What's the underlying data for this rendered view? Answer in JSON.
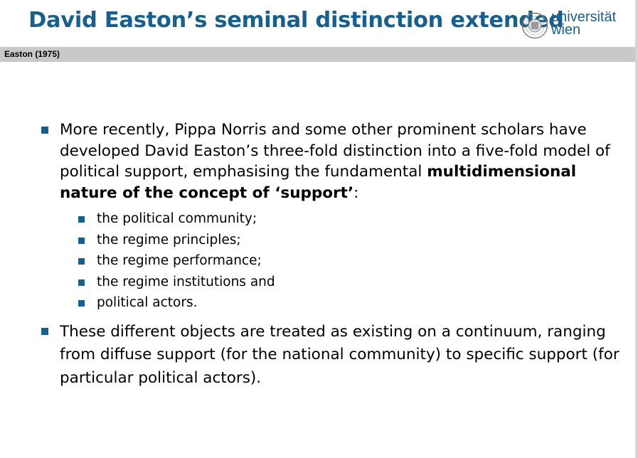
{
  "slide": {
    "title": "David Easton’s seminal distinction extended",
    "section": "Easton (1975)",
    "logo": {
      "line1": "universität",
      "line2": "wien",
      "accent": "#1a5f8a"
    },
    "bullets": [
      {
        "text_before_bold": "More recently, Pippa Norris and some other prominent scholars have developed David Easton’s three-fold distinction into a five-fold model of political support, emphasising the fundamental ",
        "bold": "multidimensional nature of the concept of ‘support’",
        "text_after_bold": ":",
        "subitems": [
          "the political community;",
          "the regime principles;",
          "the regime performance;",
          "the regime institutions and",
          "political actors."
        ]
      },
      {
        "text": "These different objects are treated as existing on a continuum, ranging from diffuse support (for the national community) to specific support (for particular political actors)."
      }
    ]
  }
}
